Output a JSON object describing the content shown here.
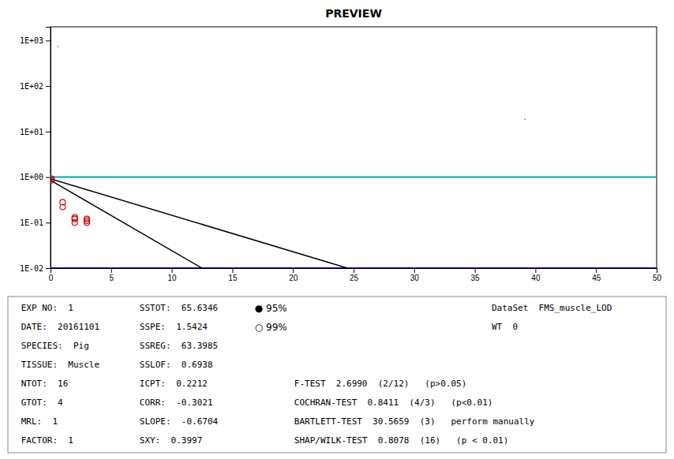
{
  "chart_data": {
    "type": "scatter",
    "title": "PREVIEW",
    "log": "y",
    "grid": false,
    "xlim": [
      0,
      50
    ],
    "ylim": [
      0.01,
      2000
    ],
    "xticks": [
      0,
      5,
      10,
      15,
      20,
      25,
      30,
      35,
      40,
      45,
      50
    ],
    "yticks": [
      {
        "value": 0.01,
        "label": "1E-02"
      },
      {
        "value": 0.1,
        "label": "1E-01"
      },
      {
        "value": 1.0,
        "label": "1E+00"
      },
      {
        "value": 10.0,
        "label": "1E+01"
      },
      {
        "value": 100.0,
        "label": "1E+02"
      },
      {
        "value": 1000.0,
        "label": "1E+03"
      }
    ],
    "series": [
      {
        "type": "scatter",
        "color": "#CC0000",
        "marker": "open-circle",
        "x": [
          0.083,
          0.083,
          1.0,
          1.0,
          2.0,
          2.0,
          2.0,
          3.0,
          3.0,
          3.0
        ],
        "values": [
          0.85,
          0.92,
          0.22,
          0.28,
          0.1,
          0.12,
          0.13,
          0.1,
          0.11,
          0.12
        ]
      },
      {
        "type": "line",
        "color": "#000000",
        "line_style": "solid",
        "x": [
          0,
          12.5
        ],
        "values": [
          0.85,
          0.01
        ]
      },
      {
        "type": "line",
        "color": "#000000",
        "line_style": "solid",
        "x": [
          0,
          24.5
        ],
        "values": [
          0.92,
          0.01
        ]
      }
    ],
    "reference_lines": [
      {
        "y": 1.0,
        "color": "#00AAAA"
      },
      {
        "y": 0.01,
        "color": "#0000CC"
      }
    ],
    "annotations": [
      {
        "text": ".",
        "x": 0.5,
        "y": 700
      },
      {
        "text": ".",
        "x": 39,
        "y": 18
      }
    ],
    "info_text": {
      "left": [
        "EXP NO:  1",
        "DATE:  20161101",
        "SPECIES:  Pig",
        "TISSUE:  Muscle",
        "NTOT:  16",
        "GTOT:  4",
        "MRL:  1",
        "FACTOR:  1"
      ],
      "middle": [
        "SSTOT:  65.6346",
        "SSPE:  1.5424",
        "SSREG:  63.3985",
        "SSLOF:  0.6938",
        "ICPT:  0.2212",
        "CORR:  -0.3021",
        "SLOPE:  -0.6704",
        "SXY:  0.3997"
      ],
      "right": [
        "F-TEST  2.6990  (2/12)   (p>0.05)",
        "COCHRAN-TEST  0.8411  (4/3)   (p<0.01)",
        "BARTLETT-TEST  30.5659  (3)   perform manually",
        "SHAP/WILK-TEST  0.8078  (16)   (p < 0.01)"
      ],
      "options": [
        "● 95%",
        "○ 99%"
      ],
      "dataset": [
        "DataSet  FMS_muscle_LOD",
        "WT  0"
      ]
    }
  }
}
